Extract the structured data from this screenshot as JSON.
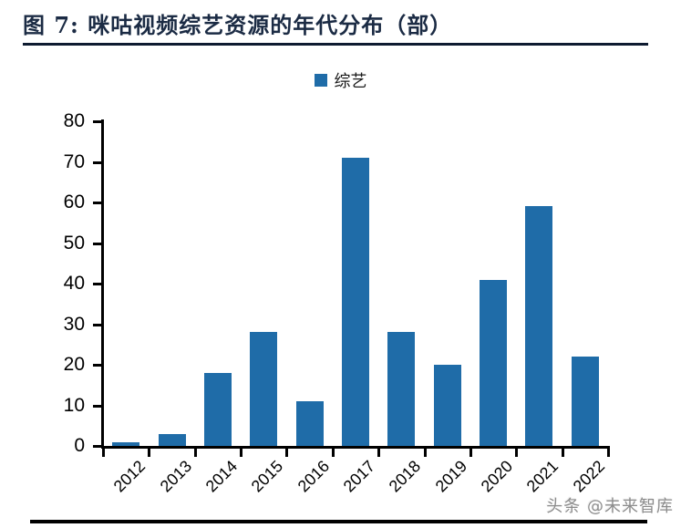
{
  "figure": {
    "title": "图 7: 咪咕视频综艺资源的年代分布（部）",
    "watermark": "头条 @未来智库"
  },
  "legend": {
    "label": "综艺",
    "swatch_color": "#1F6CA8"
  },
  "chart_data": {
    "type": "bar",
    "title": "咪咕视频综艺资源的年代分布（部）",
    "categories": [
      "2012",
      "2013",
      "2014",
      "2015",
      "2016",
      "2017",
      "2018",
      "2019",
      "2020",
      "2021",
      "2022"
    ],
    "series": [
      {
        "name": "综艺",
        "values": [
          1,
          3,
          18,
          28,
          11,
          71,
          28,
          20,
          41,
          59,
          22
        ]
      }
    ],
    "xlabel": "",
    "ylabel": "",
    "ylim": [
      0,
      80
    ],
    "yticks": [
      0,
      10,
      20,
      30,
      40,
      50,
      60,
      70,
      80
    ],
    "bar_color": "#1F6CA8",
    "grid": false,
    "legend_position": "top-center",
    "x_tick_style": "category-boundaries",
    "x_label_rotation_deg": 45
  },
  "colors": {
    "title_text": "#1B2B44",
    "title_rule": "#0E1B30",
    "axis": "#000000",
    "bar": "#1F6CA8",
    "watermark": "#8C8C8C",
    "background": "#FFFFFF"
  }
}
